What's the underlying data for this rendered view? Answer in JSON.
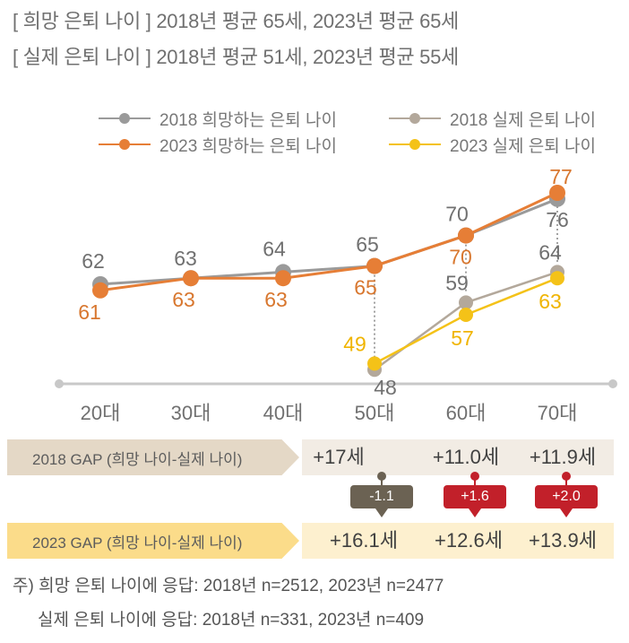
{
  "header": {
    "line1": "[ 희망 은퇴 나이 ] 2018년 평균 65세, 2023년 평균 65세",
    "line2": "[ 실제 은퇴 나이 ] 2018년 평균 51세, 2023년 평균 55세"
  },
  "chart_data": {
    "type": "line",
    "categories": [
      "20대",
      "30대",
      "40대",
      "50대",
      "60대",
      "70대"
    ],
    "ylim": [
      40,
      85
    ],
    "grid": false,
    "legend_position": "top",
    "series": [
      {
        "name": "2018 희망하는 은퇴 나이",
        "color": "#9a9a9a",
        "values": [
          62,
          63,
          64,
          65,
          70,
          76
        ]
      },
      {
        "name": "2023 희망하는 은퇴 나이",
        "color": "#e67e36",
        "values": [
          61,
          63,
          63,
          65,
          70,
          77
        ]
      },
      {
        "name": "2018 실제 은퇴 나이",
        "color": "#b3a89b",
        "values": [
          null,
          null,
          null,
          48,
          59,
          64
        ]
      },
      {
        "name": "2023 실제 은퇴 나이",
        "color": "#f4c218",
        "values": [
          null,
          null,
          null,
          49,
          57,
          63
        ]
      }
    ],
    "label_colors": {
      "2018": "#707070",
      "2023": "#d8772f",
      "2023_actual": "#f0b400"
    }
  },
  "gap": {
    "row2018": {
      "label": "2018 GAP (희망 나이-실제 나이)",
      "values": [
        "+17세",
        "+11.0세",
        "+11.9세"
      ]
    },
    "row2023": {
      "label": "2023 GAP (희망 나이-실제 나이)",
      "values": [
        "+16.1세",
        "+12.6세",
        "+13.9세"
      ]
    },
    "diffs": [
      {
        "text": "-1.1",
        "sign": "neg"
      },
      {
        "text": "+1.6",
        "sign": "pos"
      },
      {
        "text": "+2.0",
        "sign": "pos"
      }
    ],
    "colors": {
      "neg": "#6b6253",
      "pos": "#c2202a"
    }
  },
  "notes": {
    "line1": "주) 희망 은퇴 나이에 응답: 2018년 n=2512, 2023년 n=2477",
    "line2": "실제 은퇴 나이에 응답: 2018년 n=331, 2023년 n=409"
  }
}
